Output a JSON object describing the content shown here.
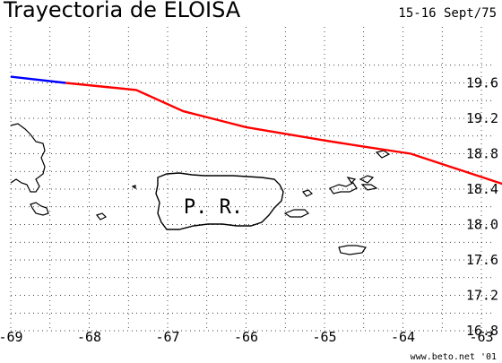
{
  "title": "Trayectoria de ELOISA",
  "dates": "15-16 Sept/75",
  "credit": "www.beto.net '01",
  "island_label": "P. R.",
  "colors": {
    "track_main": "#ff0000",
    "track_start": "#0000ff",
    "coast": "#000000",
    "grid": "#000000"
  },
  "lon_ticks": [
    "-69",
    "-68",
    "-67",
    "-66",
    "-65",
    "-64",
    "-63"
  ],
  "lat_ticks": [
    "19.6",
    "19.2",
    "18.8",
    "18.4",
    "18.0",
    "17.6",
    "17.2",
    "16.8"
  ],
  "lon_range": [
    -69.0,
    -62.6
  ],
  "lat_range": [
    16.8,
    19.9
  ],
  "track": {
    "start_segment": [
      [
        -69.0,
        19.67
      ],
      [
        -68.3,
        19.6
      ]
    ],
    "main_segment": [
      [
        -68.3,
        19.6
      ],
      [
        -67.4,
        19.52
      ],
      [
        -66.8,
        19.28
      ],
      [
        -66.0,
        19.1
      ],
      [
        -65.0,
        18.95
      ],
      [
        -64.5,
        18.88
      ],
      [
        -63.9,
        18.8
      ],
      [
        -62.6,
        18.42
      ]
    ]
  }
}
